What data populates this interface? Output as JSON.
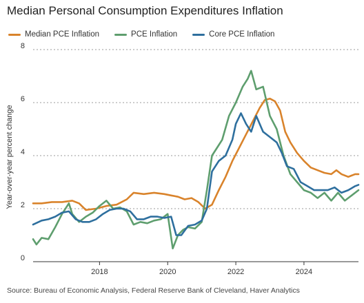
{
  "chart_data": {
    "type": "line",
    "title": "Median Personal Consumption Expenditures Inflation",
    "ylabel": "Year-over-year percent change",
    "xlabel": "",
    "ylim": [
      0,
      8
    ],
    "xlim": [
      2016.05,
      2025.6
    ],
    "yticks": [
      0,
      2,
      4,
      6,
      8
    ],
    "xticks": [
      2018,
      2020,
      2022,
      2024
    ],
    "grid": true,
    "legend_position": "top-left",
    "source": "Source: Bureau of Economic Analysis, Federal Reserve Bank of Cleveland, Haver Analytics",
    "series": [
      {
        "name": "Median PCE Inflation",
        "color": "#d9832b",
        "x": [
          2016.05,
          2016.3,
          2016.6,
          2016.9,
          2017.2,
          2017.4,
          2017.6,
          2017.9,
          2018.2,
          2018.5,
          2018.8,
          2019.0,
          2019.3,
          2019.6,
          2019.9,
          2020.1,
          2020.3,
          2020.5,
          2020.7,
          2020.9,
          2021.1,
          2021.3,
          2021.5,
          2021.7,
          2021.9,
          2022.1,
          2022.3,
          2022.5,
          2022.7,
          2022.85,
          2023.0,
          2023.15,
          2023.3,
          2023.45,
          2023.6,
          2023.8,
          2024.0,
          2024.2,
          2024.4,
          2024.6,
          2024.8,
          2024.95,
          2025.1,
          2025.3,
          2025.5,
          2025.6
        ],
        "y": [
          2.2,
          2.2,
          2.25,
          2.25,
          2.3,
          2.2,
          1.95,
          2.0,
          2.1,
          2.15,
          2.35,
          2.6,
          2.55,
          2.6,
          2.55,
          2.5,
          2.45,
          2.35,
          2.4,
          2.25,
          2.0,
          2.15,
          2.7,
          3.2,
          3.8,
          4.3,
          4.8,
          5.3,
          5.8,
          6.1,
          6.15,
          6.05,
          5.7,
          4.9,
          4.5,
          4.1,
          3.8,
          3.55,
          3.45,
          3.35,
          3.3,
          3.45,
          3.3,
          3.2,
          3.3,
          3.3
        ]
      },
      {
        "name": "PCE Inflation",
        "color": "#5e9e6e",
        "x": [
          2016.05,
          2016.15,
          2016.3,
          2016.5,
          2016.7,
          2016.9,
          2017.1,
          2017.2,
          2017.4,
          2017.6,
          2017.8,
          2018.0,
          2018.2,
          2018.4,
          2018.6,
          2018.8,
          2019.0,
          2019.2,
          2019.4,
          2019.6,
          2019.8,
          2020.0,
          2020.15,
          2020.3,
          2020.45,
          2020.6,
          2020.8,
          2021.0,
          2021.15,
          2021.3,
          2021.45,
          2021.6,
          2021.8,
          2022.0,
          2022.2,
          2022.35,
          2022.45,
          2022.6,
          2022.8,
          2023.0,
          2023.2,
          2023.4,
          2023.6,
          2023.8,
          2024.0,
          2024.2,
          2024.4,
          2024.6,
          2024.8,
          2025.0,
          2025.2,
          2025.4,
          2025.6
        ],
        "y": [
          0.85,
          0.65,
          0.9,
          0.85,
          1.3,
          1.8,
          2.2,
          1.8,
          1.5,
          1.7,
          1.85,
          2.1,
          2.3,
          2.0,
          2.05,
          1.9,
          1.4,
          1.5,
          1.45,
          1.55,
          1.6,
          1.8,
          0.5,
          1.0,
          1.2,
          1.3,
          1.25,
          1.5,
          2.7,
          4.0,
          4.3,
          4.6,
          5.5,
          6.0,
          6.6,
          6.9,
          7.2,
          6.5,
          6.6,
          5.5,
          5.0,
          4.0,
          3.3,
          3.0,
          2.7,
          2.6,
          2.4,
          2.6,
          2.3,
          2.6,
          2.3,
          2.5,
          2.7
        ]
      },
      {
        "name": "Core PCE Inflation",
        "color": "#2e6f9e",
        "x": [
          2016.05,
          2016.3,
          2016.5,
          2016.7,
          2016.9,
          2017.1,
          2017.3,
          2017.5,
          2017.7,
          2017.9,
          2018.1,
          2018.3,
          2018.5,
          2018.7,
          2018.9,
          2019.1,
          2019.3,
          2019.5,
          2019.7,
          2019.9,
          2020.1,
          2020.25,
          2020.4,
          2020.6,
          2020.8,
          2021.0,
          2021.15,
          2021.3,
          2021.5,
          2021.7,
          2021.9,
          2022.0,
          2022.15,
          2022.3,
          2022.45,
          2022.6,
          2022.8,
          2023.0,
          2023.2,
          2023.35,
          2023.5,
          2023.7,
          2023.9,
          2024.1,
          2024.3,
          2024.5,
          2024.7,
          2024.9,
          2025.1,
          2025.3,
          2025.5,
          2025.6
        ],
        "y": [
          1.4,
          1.55,
          1.6,
          1.7,
          1.85,
          1.9,
          1.6,
          1.5,
          1.5,
          1.6,
          1.8,
          1.95,
          2.0,
          2.0,
          1.9,
          1.6,
          1.6,
          1.7,
          1.7,
          1.65,
          1.7,
          1.0,
          1.0,
          1.35,
          1.4,
          1.55,
          2.0,
          3.4,
          3.8,
          4.0,
          4.6,
          5.2,
          5.6,
          5.2,
          4.9,
          5.5,
          4.9,
          4.7,
          4.5,
          4.1,
          3.6,
          3.5,
          3.0,
          2.85,
          2.7,
          2.7,
          2.7,
          2.8,
          2.6,
          2.7,
          2.85,
          2.9
        ]
      }
    ]
  }
}
